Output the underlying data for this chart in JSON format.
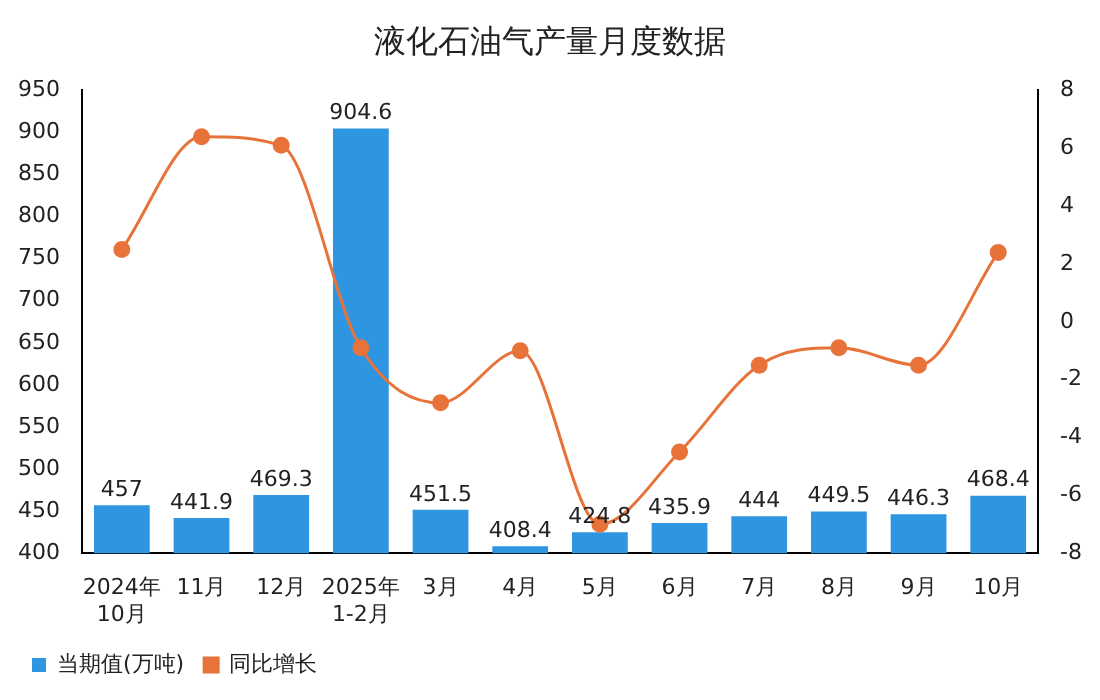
{
  "chart_data": {
    "type": "bar",
    "title": "液化石油气产量月度数据",
    "categories": [
      "2024年\n10月",
      "11月",
      "12月",
      "2025年\n1-2月",
      "3月",
      "4月",
      "5月",
      "6月",
      "7月",
      "8月",
      "9月",
      "10月"
    ],
    "series": [
      {
        "name": "当期值(万吨)",
        "color": "#2e96e0",
        "values": [
          457,
          441.9,
          469.3,
          904.6,
          451.5,
          408.4,
          424.8,
          435.9,
          444,
          449.5,
          446.3,
          468.4
        ],
        "data_labels": true
      },
      {
        "name": "同比增长",
        "type": "line",
        "axis": "y2",
        "color": "#e8733a",
        "marker": "circle",
        "values": [
          2.5,
          6.4,
          6.1,
          -0.9,
          -2.8,
          -1.0,
          -7.0,
          -4.5,
          -1.5,
          -0.9,
          -1.5,
          2.4
        ]
      }
    ],
    "ylim": [
      400,
      950
    ],
    "yticks": [
      400,
      450,
      500,
      550,
      600,
      650,
      700,
      750,
      800,
      850,
      900,
      950
    ],
    "y2lim": [
      -8,
      8
    ],
    "y2ticks": [
      -8,
      -6,
      -4,
      -2,
      0,
      2,
      4,
      6,
      8
    ],
    "grid": false,
    "legend": "bottom left"
  }
}
